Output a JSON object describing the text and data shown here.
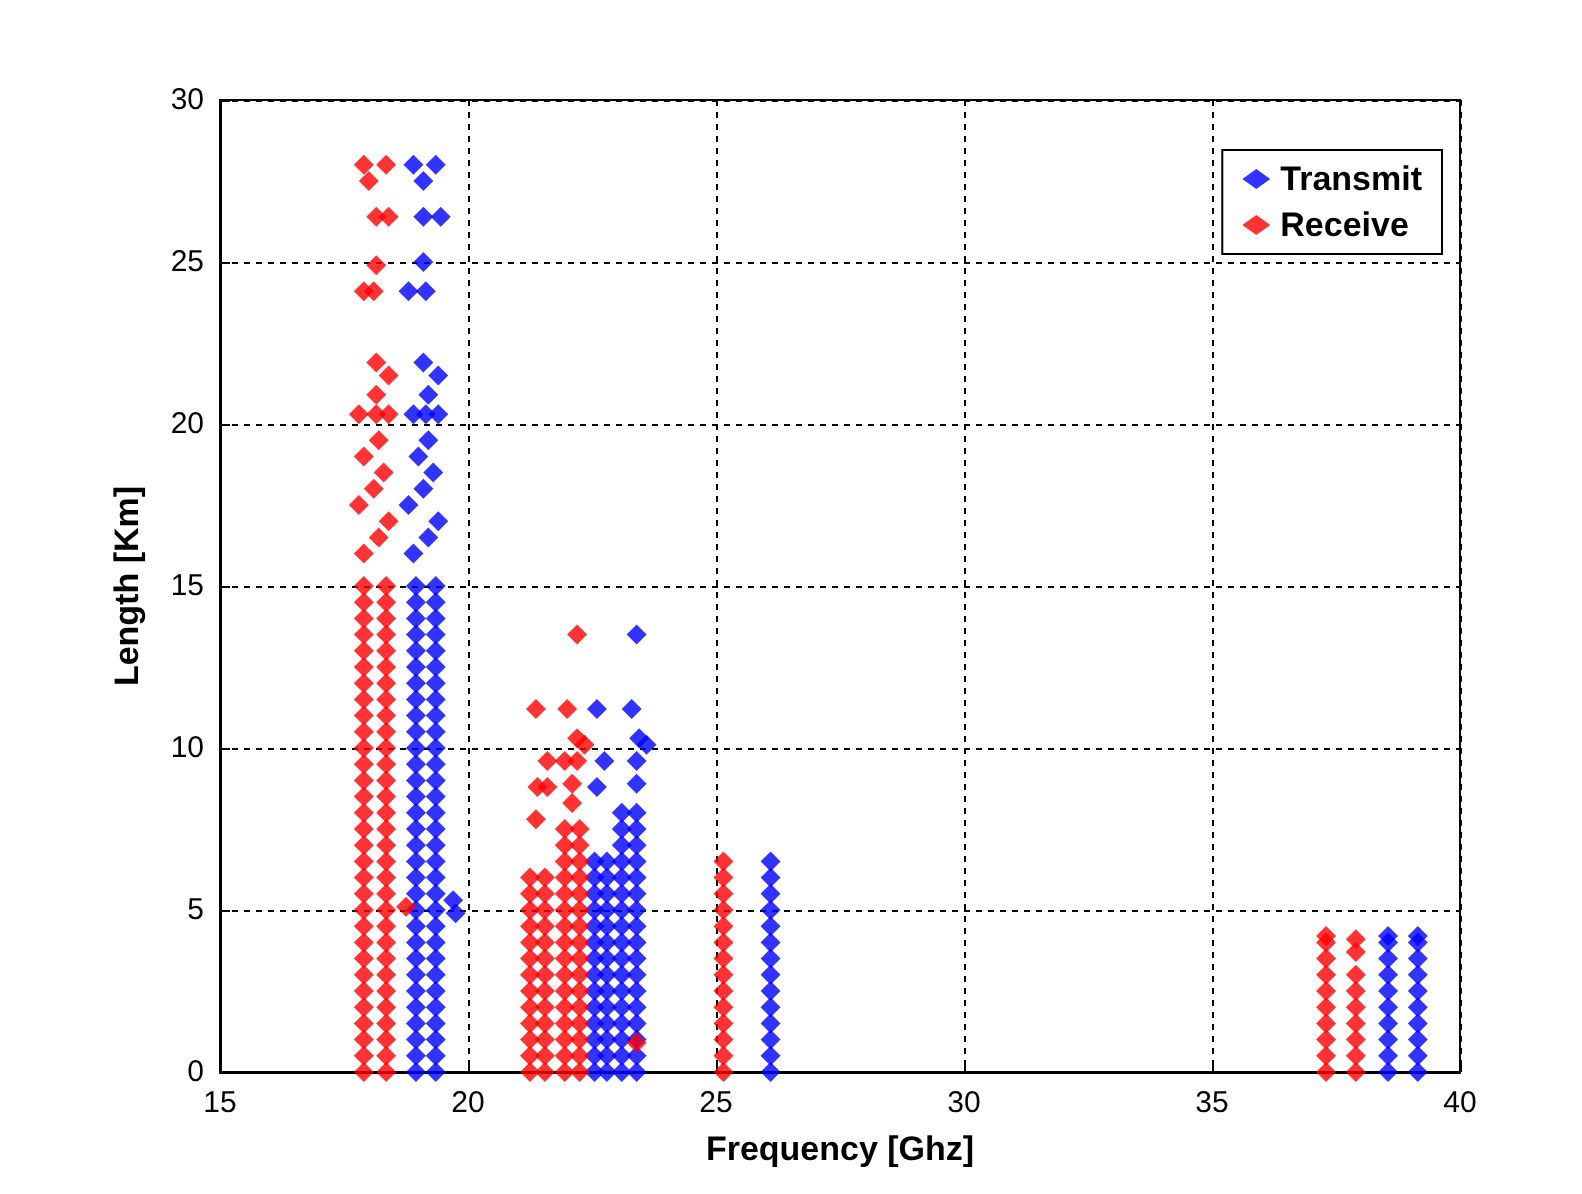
{
  "chart_data": {
    "type": "scatter",
    "xlabel": "Frequency [Ghz]",
    "ylabel": "Length [Km]",
    "xlim": [
      15,
      40
    ],
    "xticks": [
      15,
      20,
      25,
      30,
      35,
      40
    ],
    "ylim": [
      0,
      30
    ],
    "yticks": [
      0,
      5,
      10,
      15,
      20,
      25,
      30
    ],
    "grid": true,
    "legend": "top right",
    "marker": "diamond",
    "series": [
      {
        "name": "Transmit",
        "color": "#0000ff",
        "x": [
          18.95,
          18.95,
          18.95,
          18.95,
          18.95,
          18.95,
          18.95,
          18.95,
          18.95,
          18.95,
          18.95,
          18.95,
          18.95,
          18.95,
          18.95,
          18.95,
          18.95,
          18.95,
          18.95,
          18.95,
          18.95,
          18.95,
          18.95,
          18.95,
          18.95,
          18.95,
          18.95,
          18.95,
          18.95,
          18.95,
          18.95,
          19.35,
          19.35,
          19.35,
          19.35,
          19.35,
          19.35,
          19.35,
          19.35,
          19.35,
          19.35,
          19.35,
          19.35,
          19.35,
          19.35,
          19.35,
          19.35,
          19.35,
          19.35,
          19.35,
          19.35,
          19.35,
          19.35,
          19.35,
          19.35,
          19.35,
          19.35,
          19.35,
          19.35,
          19.35,
          19.35,
          19.35,
          18.9,
          19.2,
          19.4,
          18.8,
          19.1,
          19.3,
          19.0,
          19.2,
          18.9,
          19.15,
          19.4,
          19.2,
          19.1,
          19.4,
          18.8,
          19.15,
          19.1,
          19.1,
          19.45,
          19.1,
          18.9,
          19.35,
          19.7,
          19.75,
          22.55,
          22.55,
          22.55,
          22.55,
          22.55,
          22.55,
          22.55,
          22.55,
          22.55,
          22.55,
          22.55,
          22.55,
          22.55,
          22.55,
          22.8,
          22.8,
          22.8,
          22.8,
          22.8,
          22.8,
          22.8,
          22.8,
          22.8,
          22.8,
          22.8,
          22.8,
          22.8,
          22.8,
          22.6,
          22.75,
          22.6,
          23.1,
          23.1,
          23.1,
          23.1,
          23.1,
          23.1,
          23.1,
          23.1,
          23.1,
          23.1,
          23.1,
          23.1,
          23.1,
          23.1,
          23.1,
          23.1,
          23.1,
          23.4,
          23.4,
          23.4,
          23.4,
          23.4,
          23.4,
          23.4,
          23.4,
          23.4,
          23.4,
          23.4,
          23.4,
          23.4,
          23.4,
          23.4,
          23.4,
          23.4,
          23.4,
          23.3,
          23.45,
          23.6,
          23.4,
          23.4,
          26.1,
          26.1,
          26.1,
          26.1,
          26.1,
          26.1,
          26.1,
          26.1,
          26.1,
          26.1,
          26.1,
          26.1,
          26.1,
          26.1,
          38.55,
          38.55,
          38.55,
          38.55,
          38.55,
          38.55,
          38.55,
          38.55,
          38.55,
          38.55,
          39.15,
          39.15,
          39.15,
          39.15,
          39.15,
          39.15,
          39.15,
          39.15,
          39.15,
          39.15
        ],
        "values": [
          0,
          0.5,
          1,
          1.5,
          2,
          2.5,
          3,
          3.5,
          4,
          4.5,
          5,
          5.5,
          6,
          6.5,
          7,
          7.5,
          8,
          8.5,
          9,
          9.5,
          10,
          10.5,
          11,
          11.5,
          12,
          12.5,
          13,
          13.5,
          14,
          14.5,
          15,
          0,
          0.5,
          1,
          1.5,
          2,
          2.5,
          3,
          3.5,
          4,
          4.5,
          5,
          5.5,
          6,
          6.5,
          7,
          7.5,
          8,
          8.5,
          9,
          9.5,
          10,
          10.5,
          11,
          11.5,
          12,
          12.5,
          13,
          13.5,
          14,
          14.5,
          15,
          16,
          16.5,
          17,
          17.5,
          18,
          18.5,
          19,
          19.5,
          20.3,
          20.3,
          20.3,
          20.9,
          21.9,
          21.5,
          24.1,
          24.1,
          25,
          26.4,
          26.4,
          27.5,
          28,
          28,
          5.3,
          4.9,
          0,
          0.5,
          1,
          1.5,
          2,
          2.5,
          3,
          3.5,
          4,
          4.5,
          5,
          5.5,
          6,
          6.5,
          0,
          0.5,
          1,
          1.5,
          2,
          2.5,
          3,
          3.5,
          4,
          4.5,
          5,
          5.5,
          6,
          6.5,
          11.2,
          9.6,
          8.8,
          0,
          0.5,
          1,
          1.5,
          2,
          2.5,
          3,
          3.5,
          4,
          4.5,
          5,
          5.5,
          6,
          6.5,
          7,
          7.5,
          8,
          0,
          0.5,
          1,
          1.5,
          2,
          2.5,
          3,
          3.5,
          4,
          4.5,
          5,
          5.5,
          6,
          6.5,
          7,
          7.5,
          8,
          13.5,
          11.2,
          10.3,
          10.1,
          9.6,
          8.9,
          0,
          0.5,
          1,
          1.5,
          2,
          2.5,
          3,
          3.5,
          4,
          4.5,
          5,
          5.5,
          6,
          6.5,
          0,
          0.5,
          1,
          1.5,
          2,
          2.5,
          3,
          3.5,
          4,
          4.2,
          0,
          0.5,
          1,
          1.5,
          2,
          2.5,
          3,
          3.5,
          4,
          4.2
        ]
      },
      {
        "name": "Receive",
        "color": "#ff0000",
        "x": [
          17.9,
          17.9,
          17.9,
          17.9,
          17.9,
          17.9,
          17.9,
          17.9,
          17.9,
          17.9,
          17.9,
          17.9,
          17.9,
          17.9,
          17.9,
          17.9,
          17.9,
          17.9,
          17.9,
          17.9,
          17.9,
          17.9,
          17.9,
          17.9,
          17.9,
          17.9,
          17.9,
          17.9,
          17.9,
          17.9,
          17.9,
          18.35,
          18.35,
          18.35,
          18.35,
          18.35,
          18.35,
          18.35,
          18.35,
          18.35,
          18.35,
          18.35,
          18.35,
          18.35,
          18.35,
          18.35,
          18.35,
          18.35,
          18.35,
          18.35,
          18.35,
          18.35,
          18.35,
          18.35,
          18.35,
          18.35,
          18.35,
          18.35,
          18.35,
          18.35,
          18.35,
          18.35,
          17.9,
          18.2,
          18.4,
          17.8,
          18.1,
          18.3,
          17.9,
          18.2,
          17.8,
          18.15,
          18.4,
          18.15,
          18.15,
          18.4,
          17.9,
          18.1,
          18.15,
          18.15,
          18.4,
          18.0,
          17.9,
          18.35,
          18.75,
          21.25,
          21.25,
          21.25,
          21.25,
          21.25,
          21.25,
          21.25,
          21.25,
          21.25,
          21.25,
          21.25,
          21.25,
          21.25,
          21.55,
          21.55,
          21.55,
          21.55,
          21.55,
          21.55,
          21.55,
          21.55,
          21.55,
          21.55,
          21.55,
          21.55,
          21.55,
          21.37,
          21.6,
          21.4,
          21.6,
          21.37,
          21.95,
          21.95,
          21.95,
          21.95,
          21.95,
          21.95,
          21.95,
          21.95,
          21.95,
          21.95,
          21.95,
          21.95,
          21.95,
          21.95,
          21.95,
          21.95,
          22.25,
          22.25,
          22.25,
          22.25,
          22.25,
          22.25,
          22.25,
          22.25,
          22.25,
          22.25,
          22.25,
          22.25,
          22.25,
          22.25,
          22.25,
          22.25,
          22.2,
          22.0,
          22.2,
          22.35,
          21.95,
          22.2,
          22.1,
          22.1,
          23.4,
          25.15,
          25.15,
          25.15,
          25.15,
          25.15,
          25.15,
          25.15,
          25.15,
          25.15,
          25.15,
          25.15,
          25.15,
          25.15,
          25.15,
          37.3,
          37.3,
          37.3,
          37.3,
          37.3,
          37.3,
          37.3,
          37.3,
          37.3,
          37.3,
          37.9,
          37.9,
          37.9,
          37.9,
          37.9,
          37.9,
          37.9,
          37.9,
          37.9
        ],
        "values": [
          0,
          0.5,
          1,
          1.5,
          2,
          2.5,
          3,
          3.5,
          4,
          4.5,
          5,
          5.5,
          6,
          6.5,
          7,
          7.5,
          8,
          8.5,
          9,
          9.5,
          10,
          10.5,
          11,
          11.5,
          12,
          12.5,
          13,
          13.5,
          14,
          14.5,
          15,
          0,
          0.5,
          1,
          1.5,
          2,
          2.5,
          3,
          3.5,
          4,
          4.5,
          5,
          5.5,
          6,
          6.5,
          7,
          7.5,
          8,
          8.5,
          9,
          9.5,
          10,
          10.5,
          11,
          11.5,
          12,
          12.5,
          13,
          13.5,
          14,
          14.5,
          15,
          16,
          16.5,
          17,
          17.5,
          18,
          18.5,
          19,
          19.5,
          20.3,
          20.3,
          20.3,
          20.9,
          21.9,
          21.5,
          24.1,
          24.1,
          24.9,
          26.4,
          26.4,
          27.5,
          28,
          28,
          5.1,
          0,
          0.5,
          1,
          1.5,
          2,
          2.5,
          3,
          3.5,
          4,
          4.5,
          5,
          5.5,
          6,
          0,
          0.5,
          1,
          1.5,
          2,
          2.5,
          3,
          3.5,
          4,
          4.5,
          5,
          5.5,
          6,
          11.2,
          9.6,
          8.8,
          8.8,
          7.8,
          0,
          0.5,
          1,
          1.5,
          2,
          2.5,
          3,
          3.5,
          4,
          4.5,
          5,
          5.5,
          6,
          6.5,
          7,
          7.5,
          0,
          0.5,
          1,
          1.5,
          2,
          2.5,
          3,
          3.5,
          4,
          4.5,
          5,
          5.5,
          6,
          6.5,
          7,
          7.5,
          13.5,
          11.2,
          10.3,
          10.1,
          9.6,
          9.6,
          8.9,
          8.3,
          0.9,
          0,
          0.5,
          1,
          1.5,
          2,
          2.5,
          3,
          3.5,
          4,
          4.5,
          5,
          5.5,
          6,
          6.5,
          0,
          0.5,
          1,
          1.5,
          2,
          2.5,
          3,
          3.5,
          4,
          4.2,
          0,
          0.5,
          1,
          1.5,
          2,
          2.5,
          3,
          3.7,
          4.1
        ]
      }
    ]
  }
}
